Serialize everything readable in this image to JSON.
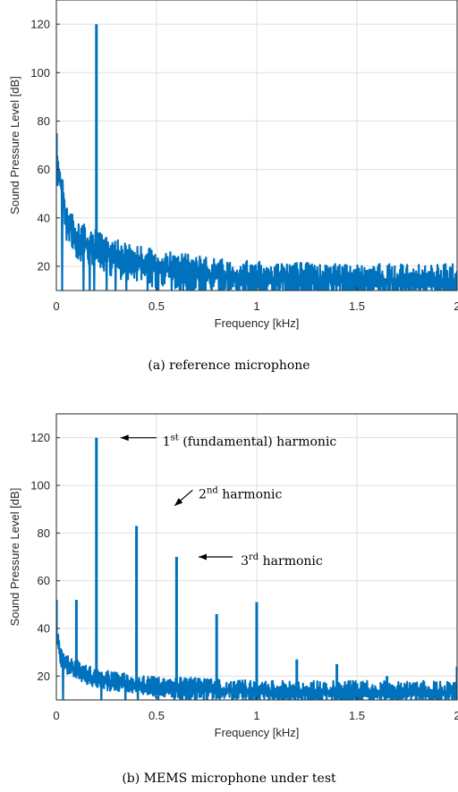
{
  "chart_data": [
    {
      "type": "line",
      "caption": "(a) reference microphone",
      "xlabel": "Frequency [kHz]",
      "ylabel": "Sound Pressure Level [dB]",
      "xlim": [
        0,
        2
      ],
      "ylim": [
        10,
        130
      ],
      "xticks": [
        0,
        0.5,
        1,
        1.5,
        2
      ],
      "xtick_labels": [
        "0",
        "0.5",
        "1",
        "1.5",
        "2"
      ],
      "yticks": [
        20,
        40,
        60,
        80,
        100,
        120
      ],
      "ytick_labels": [
        "20",
        "40",
        "60",
        "80",
        "100",
        "120"
      ],
      "grid": true,
      "line_color": "#0072BD",
      "noise_floor": {
        "x": [
          0,
          0.02,
          0.05,
          0.1,
          0.2,
          0.3,
          0.5,
          0.75,
          1.0,
          1.5,
          2.0
        ],
        "y": [
          65,
          55,
          40,
          32,
          28,
          24,
          20,
          17,
          15,
          14,
          14
        ]
      },
      "noise_top_spread": 7,
      "noise_bottom_spread": 9,
      "peaks": [
        {
          "x": 0.2,
          "y": 120
        },
        {
          "x": 0.0,
          "y": 75
        }
      ],
      "annotations": []
    },
    {
      "type": "line",
      "caption": "(b) MEMS microphone under test",
      "xlabel": "Frequency [kHz]",
      "ylabel": "Sound Pressure Level [dB]",
      "xlim": [
        0,
        2
      ],
      "ylim": [
        10,
        130
      ],
      "xticks": [
        0,
        0.5,
        1,
        1.5,
        2
      ],
      "xtick_labels": [
        "0",
        "0.5",
        "1",
        "1.5",
        "2"
      ],
      "yticks": [
        20,
        40,
        60,
        80,
        100,
        120
      ],
      "ytick_labels": [
        "20",
        "40",
        "60",
        "80",
        "100",
        "120"
      ],
      "grid": true,
      "line_color": "#0072BD",
      "noise_floor": {
        "x": [
          0,
          0.02,
          0.05,
          0.1,
          0.2,
          0.3,
          0.5,
          1.0,
          1.5,
          2.0
        ],
        "y": [
          38,
          28,
          24,
          22,
          19,
          17,
          15,
          13,
          13,
          13
        ]
      },
      "noise_top_spread": 5,
      "noise_bottom_spread": 4,
      "peaks": [
        {
          "x": 0.2,
          "y": 120
        },
        {
          "x": 0.4,
          "y": 83
        },
        {
          "x": 0.6,
          "y": 70
        },
        {
          "x": 0.8,
          "y": 46
        },
        {
          "x": 1.0,
          "y": 51
        },
        {
          "x": 0.1,
          "y": 52
        },
        {
          "x": 0.0,
          "y": 52
        },
        {
          "x": 1.2,
          "y": 27
        },
        {
          "x": 1.4,
          "y": 25
        },
        {
          "x": 1.65,
          "y": 20
        },
        {
          "x": 2.0,
          "y": 24
        }
      ],
      "annotations": [
        {
          "sup": "st",
          "pre": "1",
          "post": " (fundamental) harmonic",
          "text_x": 0.53,
          "text_y": 118.5,
          "arrow_from": [
            0.5,
            120
          ],
          "arrow_to": [
            0.32,
            120
          ]
        },
        {
          "sup": "nd",
          "pre": "2",
          "post": " harmonic",
          "text_x": 0.71,
          "text_y": 96.5,
          "arrow_from": [
            0.68,
            98
          ],
          "arrow_to": [
            0.59,
            91.5
          ]
        },
        {
          "sup": "rd",
          "pre": "3",
          "post": " harmonic",
          "text_x": 0.92,
          "text_y": 68.5,
          "arrow_from": [
            0.88,
            70
          ],
          "arrow_to": [
            0.71,
            70
          ]
        }
      ]
    }
  ]
}
